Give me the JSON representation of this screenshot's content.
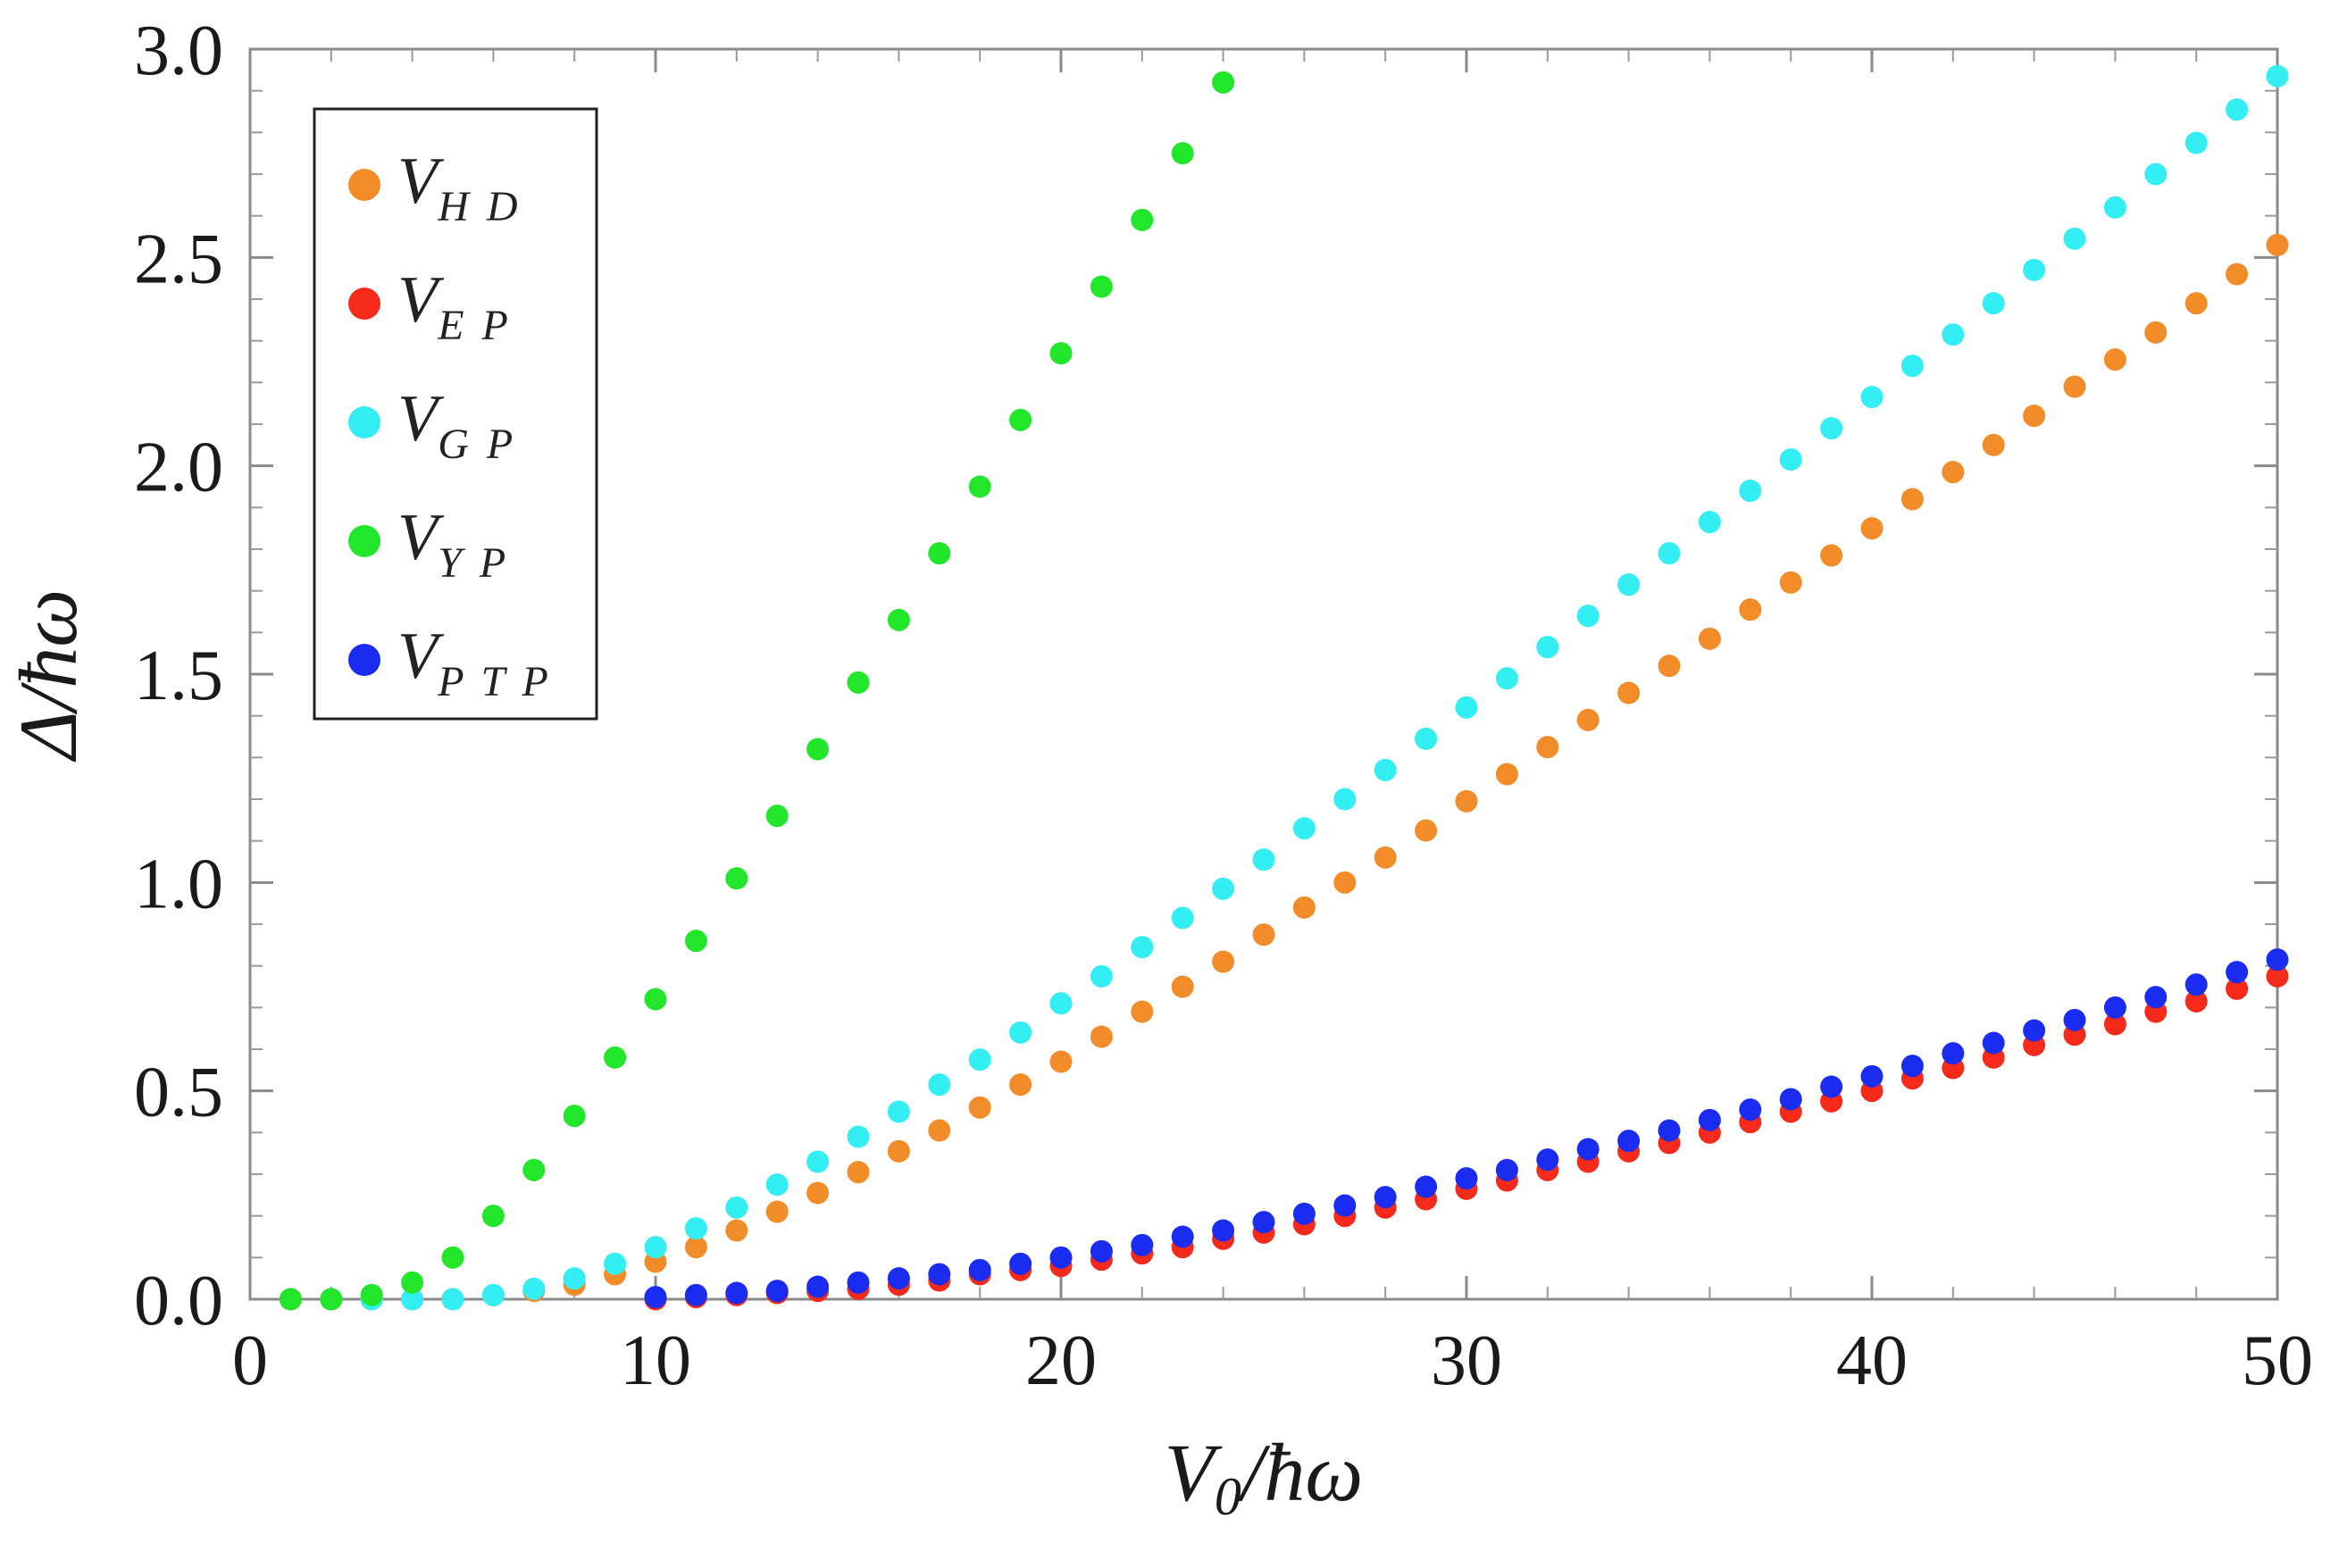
{
  "chart_data": {
    "type": "scatter",
    "title": "",
    "xlabel": "V",
    "xlabel_sub": "0",
    "xlabel_suffix": "/ħω",
    "ylabel": "Δ/ħω",
    "xlim": [
      0,
      50
    ],
    "ylim": [
      0,
      3.0
    ],
    "xticks": [
      0,
      10,
      20,
      30,
      40,
      50
    ],
    "xtick_labels": [
      "0",
      "10",
      "20",
      "30",
      "40",
      "50"
    ],
    "yticks": [
      0.0,
      0.5,
      1.0,
      1.5,
      2.0,
      2.5,
      3.0
    ],
    "ytick_labels": [
      "0.0",
      "0.5",
      "1.0",
      "1.5",
      "2.0",
      "2.5",
      "3.0"
    ],
    "grid": false,
    "legend_position": "top-left",
    "series": [
      {
        "name": "V",
        "subscript": "H D",
        "color": "#f28c28",
        "x": [
          1,
          2,
          3,
          4,
          5,
          6,
          7,
          8,
          9,
          10,
          11,
          12,
          13,
          14,
          15,
          16,
          17,
          18,
          19,
          20,
          21,
          22,
          23,
          24,
          25,
          26,
          27,
          28,
          29,
          30,
          31,
          32,
          33,
          34,
          35,
          36,
          37,
          38,
          39,
          40,
          41,
          42,
          43,
          44,
          45,
          46,
          47,
          48,
          49,
          50
        ],
        "y": [
          0.0,
          0.0,
          0.0,
          0.0,
          0.0,
          0.01,
          0.02,
          0.035,
          0.06,
          0.09,
          0.125,
          0.165,
          0.21,
          0.255,
          0.305,
          0.355,
          0.405,
          0.46,
          0.515,
          0.57,
          0.63,
          0.69,
          0.75,
          0.81,
          0.875,
          0.94,
          1.0,
          1.06,
          1.125,
          1.195,
          1.26,
          1.325,
          1.39,
          1.455,
          1.52,
          1.585,
          1.655,
          1.72,
          1.785,
          1.85,
          1.92,
          1.985,
          2.05,
          2.12,
          2.19,
          2.255,
          2.32,
          2.39,
          2.46,
          2.53
        ]
      },
      {
        "name": "V",
        "subscript": "E P",
        "color": "#f52a1a",
        "x": [
          10,
          11,
          12,
          13,
          14,
          15,
          16,
          17,
          18,
          19,
          20,
          21,
          22,
          23,
          24,
          25,
          26,
          27,
          28,
          29,
          30,
          31,
          32,
          33,
          34,
          35,
          36,
          37,
          38,
          39,
          40,
          41,
          42,
          43,
          44,
          45,
          46,
          47,
          48,
          49,
          50
        ],
        "y": [
          0.0,
          0.005,
          0.01,
          0.015,
          0.02,
          0.025,
          0.035,
          0.045,
          0.06,
          0.07,
          0.08,
          0.095,
          0.11,
          0.125,
          0.145,
          0.16,
          0.18,
          0.2,
          0.22,
          0.24,
          0.265,
          0.285,
          0.31,
          0.33,
          0.355,
          0.375,
          0.4,
          0.425,
          0.45,
          0.475,
          0.5,
          0.53,
          0.555,
          0.58,
          0.61,
          0.635,
          0.66,
          0.69,
          0.715,
          0.745,
          0.775
        ]
      },
      {
        "name": "V",
        "subscript": "G P",
        "color": "#33eef2",
        "x": [
          1,
          2,
          3,
          4,
          5,
          6,
          7,
          8,
          9,
          10,
          11,
          12,
          13,
          14,
          15,
          16,
          17,
          18,
          19,
          20,
          21,
          22,
          23,
          24,
          25,
          26,
          27,
          28,
          29,
          30,
          31,
          32,
          33,
          34,
          35,
          36,
          37,
          38,
          39,
          40,
          41,
          42,
          43,
          44,
          45,
          46,
          47,
          48,
          49,
          50
        ],
        "y": [
          0.0,
          0.0,
          0.0,
          0.0,
          0.0,
          0.01,
          0.025,
          0.05,
          0.085,
          0.125,
          0.17,
          0.22,
          0.275,
          0.33,
          0.39,
          0.45,
          0.515,
          0.575,
          0.64,
          0.71,
          0.775,
          0.845,
          0.915,
          0.985,
          1.055,
          1.13,
          1.2,
          1.27,
          1.345,
          1.42,
          1.49,
          1.565,
          1.64,
          1.715,
          1.79,
          1.865,
          1.94,
          2.015,
          2.09,
          2.165,
          2.24,
          2.315,
          2.39,
          2.47,
          2.545,
          2.62,
          2.7,
          2.775,
          2.855,
          2.935
        ]
      },
      {
        "name": "V",
        "subscript": "Y P",
        "color": "#22e629",
        "x": [
          1,
          2,
          3,
          4,
          5,
          6,
          7,
          8,
          9,
          10,
          11,
          12,
          13,
          14,
          15,
          16,
          17,
          18,
          19,
          20,
          21,
          22,
          23,
          24
        ],
        "y": [
          0.0,
          0.0,
          0.01,
          0.04,
          0.1,
          0.2,
          0.31,
          0.44,
          0.58,
          0.72,
          0.86,
          1.01,
          1.16,
          1.32,
          1.48,
          1.63,
          1.79,
          1.95,
          2.11,
          2.27,
          2.43,
          2.59,
          2.75,
          2.92
        ]
      },
      {
        "name": "V",
        "subscript": "P T P",
        "color": "#1a2cf0",
        "x": [
          10,
          11,
          12,
          13,
          14,
          15,
          16,
          17,
          18,
          19,
          20,
          21,
          22,
          23,
          24,
          25,
          26,
          27,
          28,
          29,
          30,
          31,
          32,
          33,
          34,
          35,
          36,
          37,
          38,
          39,
          40,
          41,
          42,
          43,
          44,
          45,
          46,
          47,
          48,
          49,
          50
        ],
        "y": [
          0.005,
          0.01,
          0.015,
          0.02,
          0.03,
          0.04,
          0.05,
          0.06,
          0.07,
          0.085,
          0.1,
          0.115,
          0.13,
          0.15,
          0.165,
          0.185,
          0.205,
          0.225,
          0.245,
          0.27,
          0.29,
          0.31,
          0.335,
          0.36,
          0.38,
          0.405,
          0.43,
          0.455,
          0.48,
          0.51,
          0.535,
          0.56,
          0.59,
          0.615,
          0.645,
          0.67,
          0.7,
          0.725,
          0.755,
          0.785,
          0.815
        ]
      }
    ]
  }
}
